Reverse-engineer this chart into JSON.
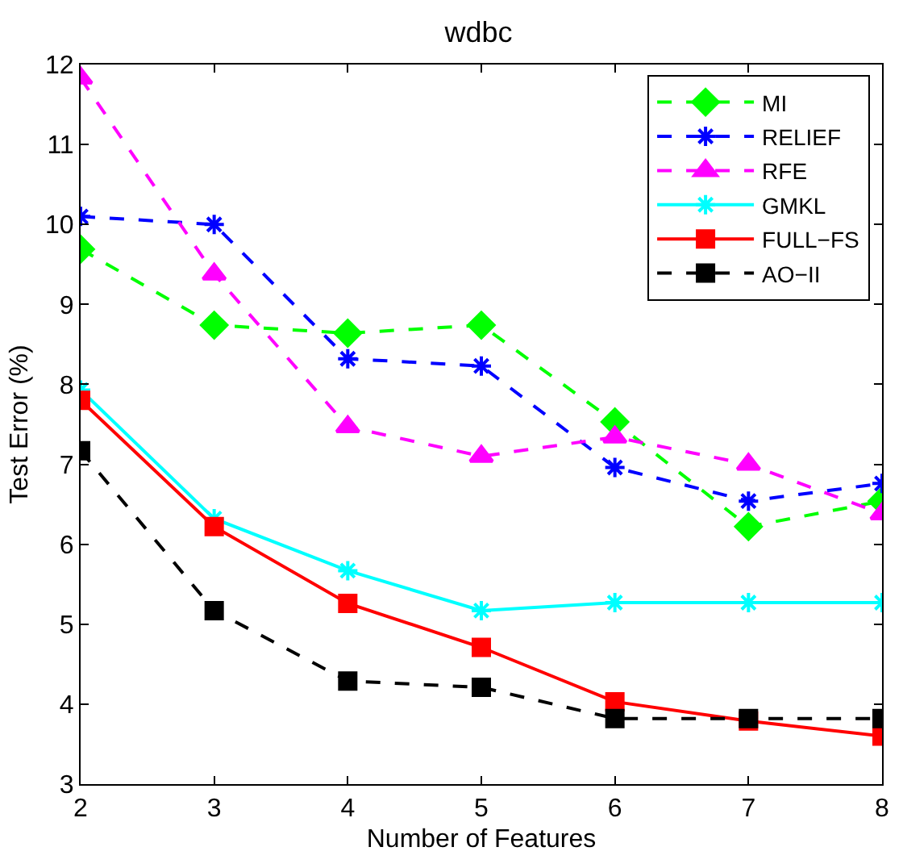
{
  "chart_data": {
    "type": "line",
    "title": "wdbc",
    "xlabel": "Number of Features",
    "ylabel": "Test Error (%)",
    "x": [
      2,
      3,
      4,
      5,
      6,
      7,
      8
    ],
    "xlim": [
      2,
      8
    ],
    "xticks": [
      2,
      3,
      4,
      5,
      6,
      7,
      8
    ],
    "ylim": [
      3,
      12
    ],
    "yticks": [
      3,
      4,
      5,
      6,
      7,
      8,
      9,
      10,
      11,
      12
    ],
    "legend": "top right",
    "series": [
      {
        "name": "MI",
        "color": "#00ff00",
        "marker": "diamond",
        "line_style": "dashed",
        "values": [
          9.69,
          8.74,
          8.64,
          8.74,
          7.53,
          6.22,
          6.54
        ]
      },
      {
        "name": "RELIEF",
        "color": "#0000ff",
        "marker": "cross",
        "line_style": "dashed",
        "values": [
          10.1,
          10.0,
          8.32,
          8.23,
          6.96,
          6.54,
          6.76
        ]
      },
      {
        "name": "RFE",
        "color": "#ff00ff",
        "marker": "triangle",
        "line_style": "dashed",
        "values": [
          11.83,
          9.38,
          7.47,
          7.1,
          7.34,
          7.0,
          6.38
        ]
      },
      {
        "name": "GMKL",
        "color": "#00ffff",
        "marker": "cross",
        "line_style": "solid",
        "values": [
          7.93,
          6.32,
          5.67,
          5.17,
          5.27,
          5.27,
          5.27
        ]
      },
      {
        "name": "FULL−FS",
        "color": "#ff0000",
        "marker": "square",
        "line_style": "solid",
        "values": [
          7.8,
          6.22,
          5.26,
          4.71,
          4.03,
          3.79,
          3.6
        ]
      },
      {
        "name": "AO−II",
        "color": "#000000",
        "marker": "square",
        "line_style": "dashed",
        "values": [
          7.17,
          5.17,
          4.29,
          4.21,
          3.82,
          3.82,
          3.82
        ]
      }
    ]
  }
}
